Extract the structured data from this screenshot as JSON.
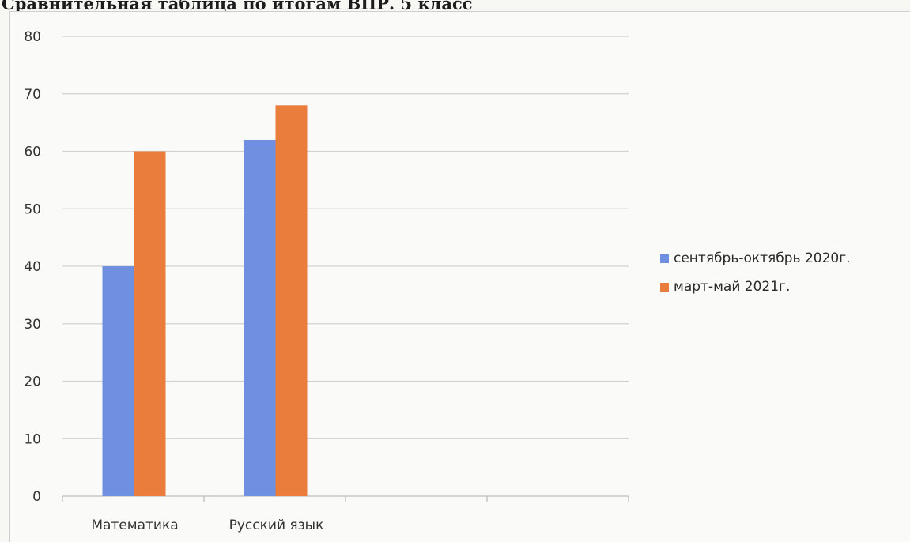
{
  "page": {
    "title": "Сравнительная таблица по итогам ВПР. 5 класс"
  },
  "chart_data": {
    "type": "bar",
    "title": "",
    "xlabel": "",
    "ylabel": "",
    "categories": [
      "Математика",
      "Русский язык",
      "",
      ""
    ],
    "series": [
      {
        "name": "сентябрь-октябрь 2020г.",
        "color": "#6f8fe0",
        "values": [
          40,
          62,
          null,
          null
        ]
      },
      {
        "name": "март-май 2021г.",
        "color": "#ea7d3c",
        "values": [
          60,
          68,
          null,
          null
        ]
      }
    ],
    "ylim": [
      0,
      80
    ],
    "yticks": [
      "0",
      "10",
      "20",
      "30",
      "40",
      "50",
      "60",
      "70",
      "80"
    ],
    "grid": true,
    "legend_position": "right"
  }
}
